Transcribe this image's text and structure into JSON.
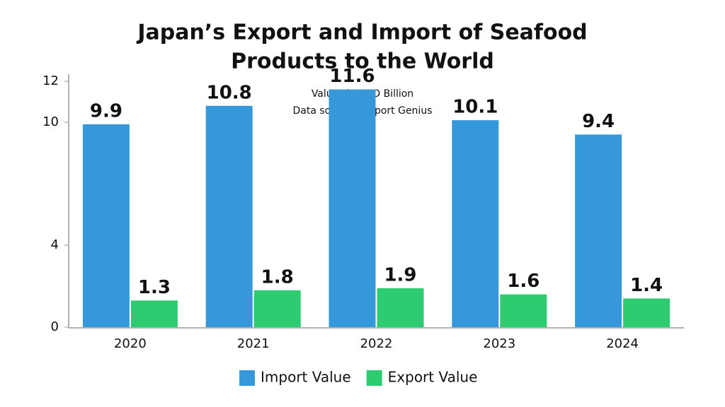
{
  "chart_data": {
    "type": "bar",
    "title": [
      "Japan’s Export and Import of Seafood",
      "Products to the World"
    ],
    "subtitle": [
      "Values in USD Billion",
      "Data source - Export Genius"
    ],
    "categories": [
      "2020",
      "2021",
      "2022",
      "2023",
      "2024"
    ],
    "series": [
      {
        "name": "Import Value",
        "color": "#3498db",
        "values": [
          9.9,
          10.8,
          11.6,
          10.1,
          9.4
        ]
      },
      {
        "name": "Export Value",
        "color": "#2ecc71",
        "values": [
          1.3,
          1.8,
          1.9,
          1.6,
          1.4
        ]
      }
    ],
    "ylim": [
      0,
      12
    ],
    "yticks": [
      0,
      4,
      10,
      12
    ],
    "grid": false,
    "legend": "bottom"
  }
}
